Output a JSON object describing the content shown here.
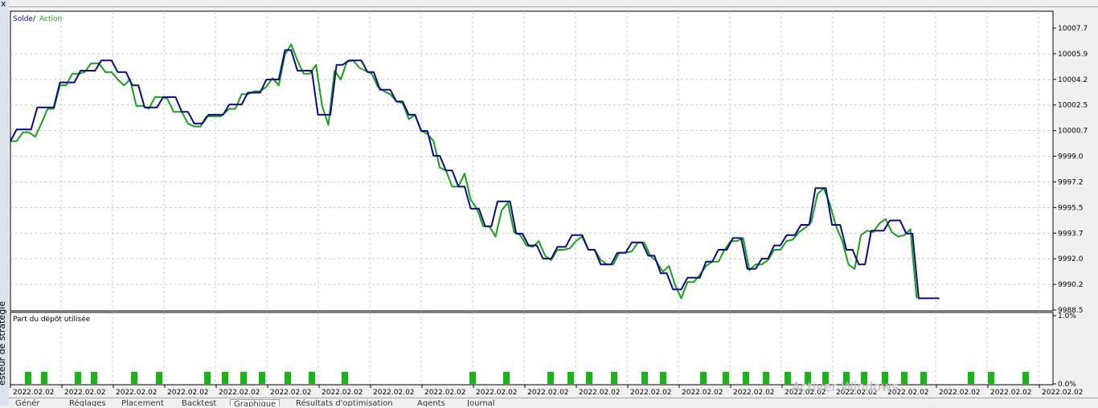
{
  "window": {
    "side_label": "esteur de stratégie",
    "close_glyph": "x"
  },
  "colors": {
    "balance": "#0a0a8c",
    "equity": "#15a215",
    "deposit_bar": "#14b814",
    "grid": "#c8c8c8"
  },
  "legend": {
    "solde": "Solde",
    "slash": " / ",
    "action": "Action"
  },
  "subchart": {
    "title": "Part du dépôt utilisée"
  },
  "bottom_tabs": [
    "Génér",
    "Réglages",
    "Placement",
    "Backtest",
    "Graphique",
    "Résultats d'optimisation",
    "Agents",
    "Journal"
  ],
  "watermark": {
    "line1": "Activer Windows",
    "line2": "Accédez aux paramètres pour activer W"
  },
  "chart_data": {
    "type": "line",
    "y_ticks": [
      "10007.7",
      "10005.9",
      "10004.2",
      "10002.5",
      "10000.7",
      "9999.0",
      "9997.2",
      "9995.5",
      "9993.7",
      "9992.0",
      "9990.2",
      "9988.5"
    ],
    "ylim": [
      9988.5,
      10007.7
    ],
    "x_labels": [
      "2022.02.02",
      "2022.02.02",
      "2022.02.02",
      "2022.02.02",
      "2022.02.02",
      "2022.02.02",
      "2022.02.02",
      "2022.02.02",
      "2022.02.02",
      "2022.02.02",
      "2022.02.02",
      "2022.02.02",
      "2022.02.02",
      "2022.02.02",
      "2022.02.02",
      "2022.02.02",
      "2022.02.02",
      "2022.02.02",
      "2022.02.02",
      "2022.02.02",
      "2022.02.02"
    ],
    "x_range": [
      0,
      1000
    ],
    "series": [
      {
        "name": "Solde",
        "points": [
          [
            0,
            10000.0
          ],
          [
            6,
            10000.8
          ],
          [
            20,
            10000.8
          ],
          [
            26,
            10002.3
          ],
          [
            42,
            10002.3
          ],
          [
            48,
            10004.0
          ],
          [
            62,
            10004.0
          ],
          [
            68,
            10004.8
          ],
          [
            82,
            10004.8
          ],
          [
            88,
            10005.5
          ],
          [
            98,
            10005.5
          ],
          [
            104,
            10004.7
          ],
          [
            112,
            10004.7
          ],
          [
            118,
            10003.8
          ],
          [
            124,
            10003.8
          ],
          [
            130,
            10002.3
          ],
          [
            142,
            10002.3
          ],
          [
            148,
            10003.0
          ],
          [
            160,
            10003.0
          ],
          [
            166,
            10002.0
          ],
          [
            172,
            10002.0
          ],
          [
            178,
            10001.2
          ],
          [
            186,
            10001.2
          ],
          [
            192,
            10001.8
          ],
          [
            206,
            10001.8
          ],
          [
            212,
            10002.5
          ],
          [
            224,
            10002.5
          ],
          [
            230,
            10003.3
          ],
          [
            242,
            10003.3
          ],
          [
            248,
            10004.2
          ],
          [
            260,
            10004.2
          ],
          [
            266,
            10006.2
          ],
          [
            272,
            10006.2
          ],
          [
            278,
            10004.8
          ],
          [
            292,
            10004.8
          ],
          [
            298,
            10001.8
          ],
          [
            310,
            10001.8
          ],
          [
            316,
            10005.2
          ],
          [
            322,
            10005.2
          ],
          [
            328,
            10005.5
          ],
          [
            340,
            10005.5
          ],
          [
            346,
            10004.7
          ],
          [
            352,
            10004.7
          ],
          [
            358,
            10003.5
          ],
          [
            368,
            10003.5
          ],
          [
            374,
            10002.7
          ],
          [
            380,
            10002.7
          ],
          [
            386,
            10001.8
          ],
          [
            392,
            10001.8
          ],
          [
            398,
            10000.7
          ],
          [
            404,
            10000.7
          ],
          [
            410,
            9999.0
          ],
          [
            416,
            9999.0
          ],
          [
            422,
            9998.0
          ],
          [
            428,
            9998.0
          ],
          [
            434,
            9996.9
          ],
          [
            440,
            9996.9
          ],
          [
            446,
            9995.4
          ],
          [
            454,
            9995.4
          ],
          [
            460,
            9994.2
          ],
          [
            466,
            9994.2
          ],
          [
            472,
            9995.9
          ],
          [
            484,
            9995.9
          ],
          [
            490,
            9993.7
          ],
          [
            496,
            9993.7
          ],
          [
            502,
            9992.9
          ],
          [
            510,
            9992.9
          ],
          [
            516,
            9992.0
          ],
          [
            524,
            9992.0
          ],
          [
            530,
            9992.8
          ],
          [
            538,
            9992.8
          ],
          [
            544,
            9993.6
          ],
          [
            554,
            9993.6
          ],
          [
            560,
            9992.6
          ],
          [
            566,
            9992.6
          ],
          [
            572,
            9991.6
          ],
          [
            582,
            9991.6
          ],
          [
            588,
            9992.4
          ],
          [
            596,
            9992.4
          ],
          [
            602,
            9993.1
          ],
          [
            612,
            9993.1
          ],
          [
            618,
            9992.2
          ],
          [
            624,
            9992.2
          ],
          [
            630,
            9991.0
          ],
          [
            636,
            9991.0
          ],
          [
            642,
            9989.9
          ],
          [
            650,
            9989.9
          ],
          [
            656,
            9990.7
          ],
          [
            668,
            9990.7
          ],
          [
            674,
            9991.8
          ],
          [
            680,
            9991.8
          ],
          [
            686,
            9992.6
          ],
          [
            694,
            9992.6
          ],
          [
            700,
            9993.4
          ],
          [
            708,
            9993.4
          ],
          [
            714,
            9991.3
          ],
          [
            722,
            9991.3
          ],
          [
            728,
            9992.0
          ],
          [
            734,
            9992.0
          ],
          [
            740,
            9992.9
          ],
          [
            746,
            9992.9
          ],
          [
            752,
            9993.6
          ],
          [
            760,
            9993.6
          ],
          [
            766,
            9994.3
          ],
          [
            774,
            9994.3
          ],
          [
            780,
            9996.8
          ],
          [
            790,
            9996.8
          ],
          [
            796,
            9994.3
          ],
          [
            804,
            9994.3
          ],
          [
            810,
            9992.6
          ],
          [
            816,
            9992.6
          ],
          [
            822,
            9991.6
          ],
          [
            828,
            9991.6
          ],
          [
            834,
            9993.9
          ],
          [
            846,
            9993.9
          ],
          [
            852,
            9994.6
          ],
          [
            862,
            9994.6
          ],
          [
            868,
            9993.7
          ],
          [
            874,
            9993.7
          ],
          [
            880,
            9989.3
          ],
          [
            900,
            9989.3
          ]
        ]
      },
      {
        "name": "Action",
        "points": [
          [
            0,
            10000.0
          ],
          [
            6,
            10000.0
          ],
          [
            12,
            10000.6
          ],
          [
            18,
            10000.6
          ],
          [
            24,
            10000.3
          ],
          [
            30,
            10001.2
          ],
          [
            36,
            10002.2
          ],
          [
            42,
            10002.2
          ],
          [
            48,
            10003.8
          ],
          [
            54,
            10003.8
          ],
          [
            60,
            10004.6
          ],
          [
            66,
            10004.6
          ],
          [
            72,
            10004.7
          ],
          [
            78,
            10005.3
          ],
          [
            86,
            10005.3
          ],
          [
            92,
            10004.7
          ],
          [
            98,
            10004.7
          ],
          [
            104,
            10004.2
          ],
          [
            110,
            10003.8
          ],
          [
            116,
            10004.2
          ],
          [
            122,
            10002.4
          ],
          [
            128,
            10002.4
          ],
          [
            134,
            10002.2
          ],
          [
            140,
            10003.0
          ],
          [
            146,
            10003.0
          ],
          [
            152,
            10002.9
          ],
          [
            158,
            10002.0
          ],
          [
            166,
            10002.0
          ],
          [
            172,
            10001.2
          ],
          [
            178,
            10001.0
          ],
          [
            184,
            10001.0
          ],
          [
            190,
            10001.7
          ],
          [
            198,
            10001.7
          ],
          [
            204,
            10001.7
          ],
          [
            212,
            10002.2
          ],
          [
            218,
            10002.2
          ],
          [
            224,
            10003.2
          ],
          [
            230,
            10003.2
          ],
          [
            236,
            10003.4
          ],
          [
            242,
            10003.4
          ],
          [
            248,
            10003.7
          ],
          [
            254,
            10004.3
          ],
          [
            260,
            10003.8
          ],
          [
            266,
            10005.9
          ],
          [
            272,
            10006.6
          ],
          [
            278,
            10005.5
          ],
          [
            284,
            10004.6
          ],
          [
            290,
            10004.6
          ],
          [
            296,
            10005.2
          ],
          [
            302,
            10002.4
          ],
          [
            308,
            10001.1
          ],
          [
            314,
            10004.8
          ],
          [
            320,
            10004.2
          ],
          [
            326,
            10005.4
          ],
          [
            332,
            10005.5
          ],
          [
            338,
            10005.0
          ],
          [
            344,
            10004.8
          ],
          [
            350,
            10004.6
          ],
          [
            356,
            10003.7
          ],
          [
            362,
            10003.4
          ],
          [
            368,
            10003.2
          ],
          [
            374,
            10002.7
          ],
          [
            380,
            10002.6
          ],
          [
            386,
            10001.5
          ],
          [
            392,
            10001.8
          ],
          [
            398,
            10000.7
          ],
          [
            404,
            10000.5
          ],
          [
            410,
            10000.0
          ],
          [
            416,
            9998.2
          ],
          [
            422,
            9998.0
          ],
          [
            428,
            9996.9
          ],
          [
            434,
            9996.9
          ],
          [
            440,
            9997.8
          ],
          [
            446,
            9996.0
          ],
          [
            452,
            9995.4
          ],
          [
            458,
            9994.2
          ],
          [
            464,
            9994.2
          ],
          [
            470,
            9993.5
          ],
          [
            476,
            9995.3
          ],
          [
            482,
            9995.8
          ],
          [
            488,
            9993.8
          ],
          [
            494,
            9993.6
          ],
          [
            500,
            9992.9
          ],
          [
            506,
            9992.8
          ],
          [
            512,
            9993.2
          ],
          [
            518,
            9992.2
          ],
          [
            524,
            9991.9
          ],
          [
            530,
            9992.6
          ],
          [
            536,
            9992.6
          ],
          [
            542,
            9992.7
          ],
          [
            548,
            9993.2
          ],
          [
            554,
            9993.5
          ],
          [
            560,
            9992.6
          ],
          [
            566,
            9992.6
          ],
          [
            572,
            9991.9
          ],
          [
            578,
            9991.6
          ],
          [
            584,
            9991.6
          ],
          [
            590,
            9992.4
          ],
          [
            596,
            9992.4
          ],
          [
            602,
            9992.5
          ],
          [
            608,
            9993.1
          ],
          [
            614,
            9993.1
          ],
          [
            620,
            9992.2
          ],
          [
            626,
            9991.8
          ],
          [
            632,
            9991.1
          ],
          [
            638,
            9991.5
          ],
          [
            644,
            9990.2
          ],
          [
            650,
            9989.3
          ],
          [
            656,
            9990.4
          ],
          [
            662,
            9990.4
          ],
          [
            668,
            9990.9
          ],
          [
            674,
            9991.5
          ],
          [
            680,
            9991.8
          ],
          [
            686,
            9991.8
          ],
          [
            692,
            9992.6
          ],
          [
            698,
            9993.2
          ],
          [
            704,
            9993.2
          ],
          [
            710,
            9993.4
          ],
          [
            716,
            9991.2
          ],
          [
            722,
            9991.6
          ],
          [
            728,
            9991.6
          ],
          [
            734,
            9991.9
          ],
          [
            740,
            9992.6
          ],
          [
            746,
            9992.6
          ],
          [
            752,
            9993.2
          ],
          [
            758,
            9993.3
          ],
          [
            764,
            9993.8
          ],
          [
            770,
            9994.1
          ],
          [
            776,
            9994.5
          ],
          [
            782,
            9996.4
          ],
          [
            788,
            9996.8
          ],
          [
            794,
            9995.7
          ],
          [
            800,
            9994.2
          ],
          [
            806,
            9993.2
          ],
          [
            812,
            9991.6
          ],
          [
            818,
            9991.3
          ],
          [
            824,
            9993.6
          ],
          [
            830,
            9993.9
          ],
          [
            836,
            9993.8
          ],
          [
            842,
            9994.4
          ],
          [
            848,
            9994.7
          ],
          [
            854,
            9993.8
          ],
          [
            860,
            9993.5
          ],
          [
            866,
            9993.6
          ],
          [
            872,
            9994.0
          ],
          [
            878,
            9989.3
          ]
        ]
      }
    ],
    "deposit_bars": [
      22,
      42,
      84,
      104,
      154,
      185,
      245,
      267,
      290,
      313,
      345,
      375,
      416,
      575,
      617,
      672,
      697,
      720,
      751,
      789,
      812,
      862,
      890,
      915,
      940,
      967,
      992,
      1014,
      1040,
      1062,
      1088,
      1112,
      1136,
      1195,
      1220,
      1263
    ],
    "subchart_y_ticks": [
      "1.0%",
      "0.0%"
    ]
  }
}
